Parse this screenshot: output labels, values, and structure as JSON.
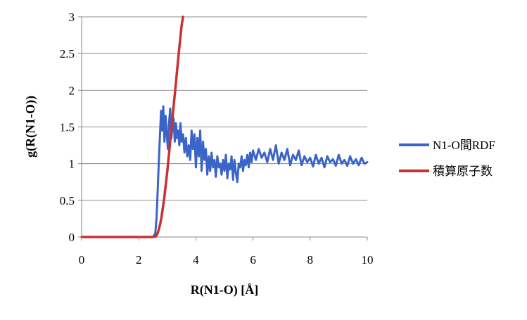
{
  "chart_data": {
    "type": "line",
    "title": "",
    "xlabel": "R(N1-O) [Å]",
    "ylabel": "g(R(N1-O))",
    "xlim": [
      0,
      10
    ],
    "ylim": [
      0,
      3
    ],
    "x_ticks": [
      "0",
      "2",
      "4",
      "6",
      "8",
      "10"
    ],
    "y_ticks": [
      "0",
      "0.5",
      "1",
      "1.5",
      "2",
      "2.5",
      "3"
    ],
    "grid": "horizontal",
    "legend_position": "right",
    "series": [
      {
        "name": "N1-O間RDF",
        "color": "#3a64c8",
        "x": [
          0,
          2.5,
          2.58,
          2.62,
          2.66,
          2.7,
          2.74,
          2.78,
          2.82,
          2.86,
          2.9,
          2.94,
          2.98,
          3.02,
          3.06,
          3.1,
          3.14,
          3.18,
          3.22,
          3.26,
          3.3,
          3.34,
          3.38,
          3.42,
          3.46,
          3.5,
          3.55,
          3.6,
          3.65,
          3.7,
          3.75,
          3.8,
          3.85,
          3.9,
          3.95,
          4.0,
          4.05,
          4.1,
          4.15,
          4.2,
          4.25,
          4.3,
          4.35,
          4.4,
          4.45,
          4.5,
          4.55,
          4.6,
          4.65,
          4.7,
          4.75,
          4.8,
          4.85,
          4.9,
          4.95,
          5.0,
          5.05,
          5.1,
          5.15,
          5.2,
          5.25,
          5.3,
          5.35,
          5.4,
          5.45,
          5.5,
          5.55,
          5.6,
          5.65,
          5.7,
          5.75,
          5.8,
          5.85,
          5.9,
          5.95,
          6.0,
          6.1,
          6.2,
          6.3,
          6.4,
          6.5,
          6.6,
          6.7,
          6.8,
          6.9,
          7.0,
          7.1,
          7.2,
          7.3,
          7.4,
          7.5,
          7.6,
          7.7,
          7.8,
          7.9,
          8.0,
          8.1,
          8.2,
          8.3,
          8.4,
          8.5,
          8.6,
          8.7,
          8.8,
          8.9,
          9.0,
          9.1,
          9.2,
          9.3,
          9.4,
          9.5,
          9.6,
          9.7,
          9.8,
          9.9,
          10.0
        ],
        "y": [
          0,
          0,
          0.05,
          0.25,
          0.6,
          1.0,
          1.35,
          1.72,
          1.45,
          1.78,
          1.3,
          1.65,
          1.4,
          1.2,
          1.55,
          1.75,
          1.35,
          1.5,
          1.62,
          1.3,
          1.55,
          1.35,
          1.45,
          1.25,
          1.55,
          1.3,
          1.4,
          1.15,
          1.35,
          1.1,
          1.25,
          1.05,
          1.45,
          1.2,
          1.4,
          0.95,
          1.35,
          1.1,
          1.45,
          0.9,
          1.3,
          1.05,
          1.2,
          0.85,
          1.1,
          0.9,
          1.15,
          0.95,
          1.05,
          0.82,
          1.1,
          0.95,
          1.0,
          0.85,
          1.05,
          0.9,
          1.12,
          0.8,
          1.0,
          0.92,
          1.1,
          0.78,
          1.05,
          0.88,
          0.75,
          1.0,
          0.95,
          1.1,
          0.9,
          1.05,
          0.98,
          1.12,
          0.95,
          1.15,
          1.02,
          1.18,
          1.05,
          1.2,
          1.08,
          1.15,
          1.02,
          1.2,
          1.05,
          1.25,
          1.0,
          1.15,
          1.05,
          1.2,
          0.98,
          1.12,
          1.05,
          1.18,
          0.98,
          1.1,
          1.02,
          1.08,
          0.96,
          1.12,
          1.0,
          1.08,
          0.95,
          1.1,
          1.02,
          1.06,
          0.97,
          1.12,
          1.0,
          1.05,
          0.97,
          1.1,
          1.0,
          1.06,
          0.98,
          1.08,
          1.0,
          1.02
        ]
      },
      {
        "name": "積算原子数",
        "color": "#c83232",
        "x": [
          0,
          2.5,
          2.6,
          2.65,
          2.7,
          2.75,
          2.8,
          2.9,
          3.0,
          3.1,
          3.2,
          3.3,
          3.4,
          3.5,
          3.55
        ],
        "y": [
          0,
          0,
          0.01,
          0.04,
          0.1,
          0.18,
          0.28,
          0.55,
          0.9,
          1.3,
          1.7,
          2.1,
          2.5,
          2.88,
          3.0
        ]
      }
    ]
  }
}
